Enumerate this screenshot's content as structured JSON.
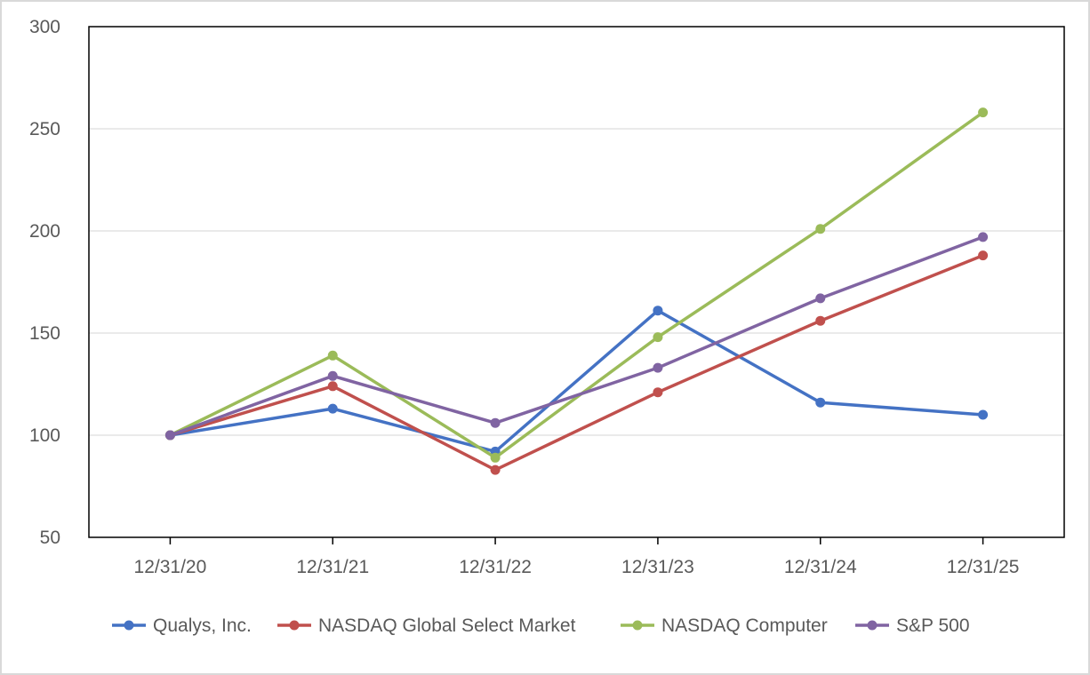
{
  "chart_data": {
    "type": "line",
    "title": "",
    "xlabel": "",
    "ylabel": "",
    "categories": [
      "12/31/20",
      "12/31/21",
      "12/31/22",
      "12/31/23",
      "12/31/24",
      "12/31/25"
    ],
    "ylim": [
      50,
      300
    ],
    "yticks": [
      50,
      100,
      150,
      200,
      250,
      300
    ],
    "grid": true,
    "legend_position": "bottom",
    "series": [
      {
        "name": "Qualys, Inc.",
        "color": "#4472c4",
        "values": [
          100,
          113,
          92,
          161,
          116,
          110
        ]
      },
      {
        "name": "NASDAQ Global Select Market",
        "color": "#c0504d",
        "values": [
          100,
          124,
          83,
          121,
          156,
          188
        ]
      },
      {
        "name": "NASDAQ Computer",
        "color": "#9bbb59",
        "values": [
          100,
          139,
          89,
          148,
          201,
          258
        ]
      },
      {
        "name": "S&P 500",
        "color": "#8064a2",
        "values": [
          100,
          129,
          106,
          133,
          167,
          197
        ]
      }
    ]
  }
}
